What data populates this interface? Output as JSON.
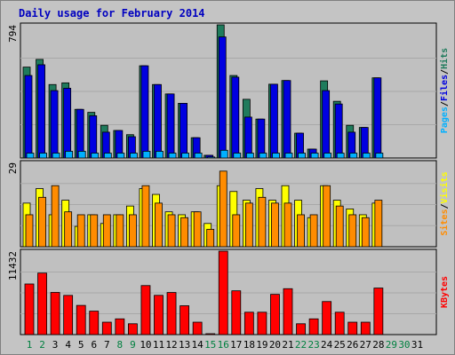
{
  "chart_data": {
    "type": "bar",
    "title": "Daily usage for February 2014",
    "colors": {
      "frame": "#c4c4c4",
      "plot_bg": "#c0c0c0",
      "title": "#0000c0",
      "hits": "#1f7b5c",
      "files": "#0000e0",
      "pages": "#00b0ff",
      "visits": "#ffff00",
      "sites": "#ff8c00",
      "kbytes": "#ff0000",
      "weekday": "#000000",
      "weekend": "#008040"
    },
    "categories": [
      "1",
      "2",
      "3",
      "4",
      "5",
      "6",
      "7",
      "8",
      "9",
      "10",
      "11",
      "12",
      "13",
      "14",
      "15",
      "16",
      "17",
      "18",
      "19",
      "20",
      "21",
      "22",
      "23",
      "24",
      "25",
      "26",
      "27",
      "28",
      "29",
      "30",
      "31"
    ],
    "weekend": [
      true,
      true,
      false,
      false,
      false,
      false,
      false,
      true,
      true,
      false,
      false,
      false,
      false,
      false,
      true,
      true,
      false,
      false,
      false,
      false,
      false,
      true,
      true,
      false,
      false,
      false,
      false,
      false,
      true,
      true,
      false
    ],
    "panels": [
      {
        "ymax_label": "794",
        "ymax": 794,
        "legend": [
          "Pages",
          "Files",
          "Hits"
        ],
        "series": [
          {
            "name": "Hits",
            "values": [
              542,
              588,
              438,
              448,
              290,
              272,
              195,
              164,
              139,
              550,
              438,
              382,
              326,
              121,
              16,
              794,
              492,
              350,
              232,
              440,
              462,
              148,
              53,
              460,
              338,
              195,
              182,
              478,
              0,
              0,
              0
            ]
          },
          {
            "name": "Files",
            "values": [
              492,
              556,
              402,
              416,
              290,
              252,
              154,
              164,
              127,
              550,
              438,
              382,
              326,
              121,
              16,
              722,
              482,
              244,
              232,
              440,
              462,
              148,
              53,
              402,
              322,
              154,
              182,
              478,
              0,
              0,
              0
            ]
          },
          {
            "name": "Pages",
            "values": [
              29,
              29,
              29,
              40,
              40,
              29,
              29,
              29,
              29,
              40,
              40,
              29,
              29,
              29,
              6,
              46,
              29,
              29,
              29,
              29,
              29,
              29,
              29,
              29,
              29,
              29,
              29,
              29,
              0,
              0,
              0
            ]
          }
        ]
      },
      {
        "ymax_label": "29",
        "ymax": 29,
        "legend": [
          "Sites",
          "Visits"
        ],
        "series": [
          {
            "name": "Visits",
            "values": [
              15,
              20,
              11,
              16,
              7,
              11,
              8,
              11,
              14,
              20,
              18,
              12,
              11,
              12,
              8,
              21,
              19,
              16,
              20,
              16,
              21,
              16,
              10,
              21,
              16,
              13,
              11,
              15,
              0,
              0,
              0
            ]
          },
          {
            "name": "Sites",
            "values": [
              11,
              17,
              21,
              12,
              11,
              11,
              11,
              11,
              11,
              21,
              15,
              11,
              10,
              12,
              6,
              26,
              11,
              15,
              17,
              15,
              15,
              11,
              11,
              21,
              14,
              11,
              10,
              16,
              0,
              0,
              0
            ]
          }
        ]
      },
      {
        "ymax_label": "11432",
        "ymax": 11432,
        "legend": [
          "KBytes"
        ],
        "series": [
          {
            "name": "KBytes",
            "values": [
              6934,
              8430,
              5779,
              5372,
              4000,
              3215,
              1700,
              2158,
              1484,
              6718,
              5380,
              5770,
              3953,
              1700,
              100,
              11432,
              6000,
              3067,
              3067,
              5516,
              6290,
              1484,
              2158,
              4530,
              3067,
              1700,
              1700,
              6380,
              0,
              0,
              0
            ]
          }
        ]
      }
    ]
  }
}
